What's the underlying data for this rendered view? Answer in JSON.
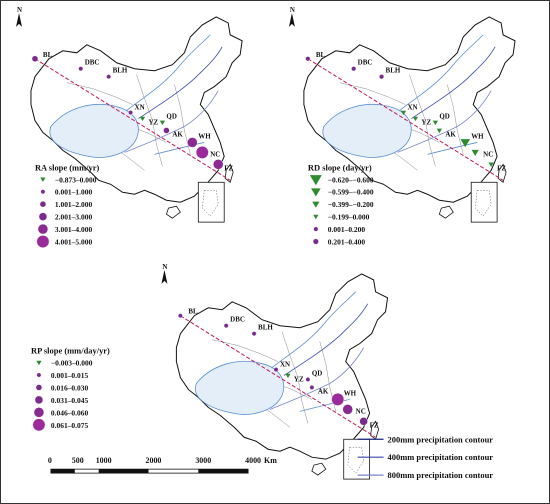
{
  "north_label": "N",
  "maps": [
    {
      "id": "ra",
      "legend_title": "RA slope (mm/yr)",
      "legend": [
        {
          "label": "−0.873–0.000",
          "symbol": "triangle",
          "size": 2.2,
          "color": "#2e8b2e"
        },
        {
          "label": "0.001–1.000",
          "symbol": "circle",
          "size": 2.2,
          "color": "#7a2a8c"
        },
        {
          "label": "1.001–2.000",
          "symbol": "circle",
          "size": 3.0,
          "color": "#7a2a8c"
        },
        {
          "label": "2.001–3.000",
          "symbol": "circle",
          "size": 4.0,
          "color": "#7a2a8c"
        },
        {
          "label": "3.001–4.000",
          "symbol": "circle",
          "size": 5.0,
          "color": "#8b2a93"
        },
        {
          "label": "4.001–5.000",
          "symbol": "circle",
          "size": 6.2,
          "color": "#9b2a9a"
        }
      ],
      "stations": [
        {
          "name": "BL",
          "class": 2
        },
        {
          "name": "DBC",
          "class": 1
        },
        {
          "name": "BLH",
          "class": 1
        },
        {
          "name": "XN",
          "class": 1
        },
        {
          "name": "YZ",
          "class": 0
        },
        {
          "name": "QD",
          "class": 0
        },
        {
          "name": "AK",
          "class": 2
        },
        {
          "name": "WH",
          "class": 4
        },
        {
          "name": "NC",
          "class": 5
        },
        {
          "name": "FZ",
          "class": 4
        }
      ]
    },
    {
      "id": "rd",
      "legend_title": "RD slope (day/yr)",
      "legend": [
        {
          "label": "−0.620–−0.600",
          "symbol": "triangle",
          "size": 5.0,
          "color": "#2e8b2e"
        },
        {
          "label": "−0.599–−0.400",
          "symbol": "triangle",
          "size": 4.0,
          "color": "#2e8b2e"
        },
        {
          "label": "−0.399–−0.200",
          "symbol": "triangle",
          "size": 3.0,
          "color": "#2e8b2e"
        },
        {
          "label": "−0.199–0.000",
          "symbol": "triangle",
          "size": 2.2,
          "color": "#2e8b2e"
        },
        {
          "label": "0.001–0.200",
          "symbol": "circle",
          "size": 2.3,
          "color": "#7a2a8c"
        },
        {
          "label": "0.201–0.400",
          "symbol": "circle",
          "size": 2.8,
          "color": "#7a2a8c"
        }
      ],
      "stations": [
        {
          "name": "BL",
          "class": 4
        },
        {
          "name": "DBC",
          "class": 4
        },
        {
          "name": "BLH",
          "class": 4
        },
        {
          "name": "XN",
          "class": 3
        },
        {
          "name": "YZ",
          "class": 3
        },
        {
          "name": "QD",
          "class": 3
        },
        {
          "name": "AK",
          "class": 3
        },
        {
          "name": "WH",
          "class": 1
        },
        {
          "name": "NC",
          "class": 2
        },
        {
          "name": "FZ",
          "class": 3
        }
      ]
    },
    {
      "id": "rp",
      "legend_title": "RP slope (mm/day/yr)",
      "legend": [
        {
          "label": "−0.003–0.000",
          "symbol": "triangle",
          "size": 2.2,
          "color": "#2e8b2e"
        },
        {
          "label": "0.001–0.015",
          "symbol": "circle",
          "size": 2.2,
          "color": "#7a2a8c"
        },
        {
          "label": "0.016–0.030",
          "symbol": "circle",
          "size": 3.0,
          "color": "#7a2a8c"
        },
        {
          "label": "0.031–0.045",
          "symbol": "circle",
          "size": 4.0,
          "color": "#7a2a8c"
        },
        {
          "label": "0.046–0.060",
          "symbol": "circle",
          "size": 5.0,
          "color": "#8b2a93"
        },
        {
          "label": "0.061–0.075",
          "symbol": "circle",
          "size": 6.2,
          "color": "#9b2a9a"
        }
      ],
      "stations": [
        {
          "name": "BL",
          "class": 1
        },
        {
          "name": "DBC",
          "class": 1
        },
        {
          "name": "BLH",
          "class": 1
        },
        {
          "name": "XN",
          "class": 1
        },
        {
          "name": "YZ",
          "class": 0
        },
        {
          "name": "QD",
          "class": 1
        },
        {
          "name": "AK",
          "class": 1
        },
        {
          "name": "WH",
          "class": 5
        },
        {
          "name": "NC",
          "class": 4
        },
        {
          "name": "FZ",
          "class": 3
        }
      ]
    }
  ],
  "scale_bar": {
    "ticks": [
      "0",
      "500",
      "1000",
      "2000",
      "3000",
      "4000"
    ],
    "unit": "Km"
  },
  "contour_legend": [
    {
      "label": "200mm precipitation contour",
      "color": "#1a237e"
    },
    {
      "label": "400mm precipitation contour",
      "color": "#3949ab"
    },
    {
      "label": "800mm precipitation contour",
      "color": "#7986cb"
    }
  ],
  "colors": {
    "land": "#ffffff",
    "border": "#111111",
    "tibet_fill": "#e3eef9",
    "tibet_line": "#5a8fd0",
    "transect_line": "#c2185b"
  }
}
